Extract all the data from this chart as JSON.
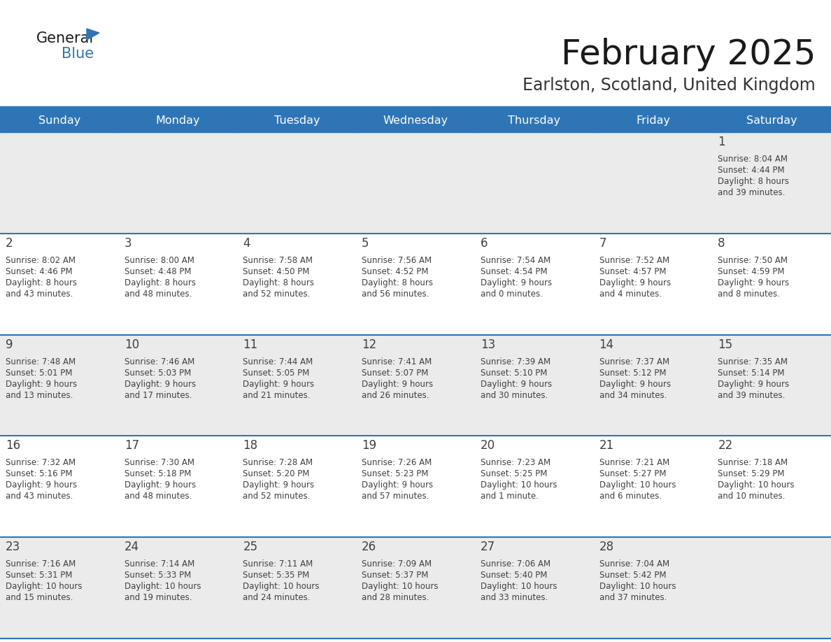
{
  "title": "February 2025",
  "subtitle": "Earlston, Scotland, United Kingdom",
  "header_bg": "#2E75B6",
  "header_text": "#FFFFFF",
  "row_bg_odd": "#EBEBEB",
  "row_bg_even": "#FFFFFF",
  "border_color": "#2E75B6",
  "day_number_color": "#404040",
  "text_color": "#404040",
  "days_of_week": [
    "Sunday",
    "Monday",
    "Tuesday",
    "Wednesday",
    "Thursday",
    "Friday",
    "Saturday"
  ],
  "weeks": [
    [
      {
        "day": null,
        "info": ""
      },
      {
        "day": null,
        "info": ""
      },
      {
        "day": null,
        "info": ""
      },
      {
        "day": null,
        "info": ""
      },
      {
        "day": null,
        "info": ""
      },
      {
        "day": null,
        "info": ""
      },
      {
        "day": 1,
        "info": "Sunrise: 8:04 AM\nSunset: 4:44 PM\nDaylight: 8 hours\nand 39 minutes."
      }
    ],
    [
      {
        "day": 2,
        "info": "Sunrise: 8:02 AM\nSunset: 4:46 PM\nDaylight: 8 hours\nand 43 minutes."
      },
      {
        "day": 3,
        "info": "Sunrise: 8:00 AM\nSunset: 4:48 PM\nDaylight: 8 hours\nand 48 minutes."
      },
      {
        "day": 4,
        "info": "Sunrise: 7:58 AM\nSunset: 4:50 PM\nDaylight: 8 hours\nand 52 minutes."
      },
      {
        "day": 5,
        "info": "Sunrise: 7:56 AM\nSunset: 4:52 PM\nDaylight: 8 hours\nand 56 minutes."
      },
      {
        "day": 6,
        "info": "Sunrise: 7:54 AM\nSunset: 4:54 PM\nDaylight: 9 hours\nand 0 minutes."
      },
      {
        "day": 7,
        "info": "Sunrise: 7:52 AM\nSunset: 4:57 PM\nDaylight: 9 hours\nand 4 minutes."
      },
      {
        "day": 8,
        "info": "Sunrise: 7:50 AM\nSunset: 4:59 PM\nDaylight: 9 hours\nand 8 minutes."
      }
    ],
    [
      {
        "day": 9,
        "info": "Sunrise: 7:48 AM\nSunset: 5:01 PM\nDaylight: 9 hours\nand 13 minutes."
      },
      {
        "day": 10,
        "info": "Sunrise: 7:46 AM\nSunset: 5:03 PM\nDaylight: 9 hours\nand 17 minutes."
      },
      {
        "day": 11,
        "info": "Sunrise: 7:44 AM\nSunset: 5:05 PM\nDaylight: 9 hours\nand 21 minutes."
      },
      {
        "day": 12,
        "info": "Sunrise: 7:41 AM\nSunset: 5:07 PM\nDaylight: 9 hours\nand 26 minutes."
      },
      {
        "day": 13,
        "info": "Sunrise: 7:39 AM\nSunset: 5:10 PM\nDaylight: 9 hours\nand 30 minutes."
      },
      {
        "day": 14,
        "info": "Sunrise: 7:37 AM\nSunset: 5:12 PM\nDaylight: 9 hours\nand 34 minutes."
      },
      {
        "day": 15,
        "info": "Sunrise: 7:35 AM\nSunset: 5:14 PM\nDaylight: 9 hours\nand 39 minutes."
      }
    ],
    [
      {
        "day": 16,
        "info": "Sunrise: 7:32 AM\nSunset: 5:16 PM\nDaylight: 9 hours\nand 43 minutes."
      },
      {
        "day": 17,
        "info": "Sunrise: 7:30 AM\nSunset: 5:18 PM\nDaylight: 9 hours\nand 48 minutes."
      },
      {
        "day": 18,
        "info": "Sunrise: 7:28 AM\nSunset: 5:20 PM\nDaylight: 9 hours\nand 52 minutes."
      },
      {
        "day": 19,
        "info": "Sunrise: 7:26 AM\nSunset: 5:23 PM\nDaylight: 9 hours\nand 57 minutes."
      },
      {
        "day": 20,
        "info": "Sunrise: 7:23 AM\nSunset: 5:25 PM\nDaylight: 10 hours\nand 1 minute."
      },
      {
        "day": 21,
        "info": "Sunrise: 7:21 AM\nSunset: 5:27 PM\nDaylight: 10 hours\nand 6 minutes."
      },
      {
        "day": 22,
        "info": "Sunrise: 7:18 AM\nSunset: 5:29 PM\nDaylight: 10 hours\nand 10 minutes."
      }
    ],
    [
      {
        "day": 23,
        "info": "Sunrise: 7:16 AM\nSunset: 5:31 PM\nDaylight: 10 hours\nand 15 minutes."
      },
      {
        "day": 24,
        "info": "Sunrise: 7:14 AM\nSunset: 5:33 PM\nDaylight: 10 hours\nand 19 minutes."
      },
      {
        "day": 25,
        "info": "Sunrise: 7:11 AM\nSunset: 5:35 PM\nDaylight: 10 hours\nand 24 minutes."
      },
      {
        "day": 26,
        "info": "Sunrise: 7:09 AM\nSunset: 5:37 PM\nDaylight: 10 hours\nand 28 minutes."
      },
      {
        "day": 27,
        "info": "Sunrise: 7:06 AM\nSunset: 5:40 PM\nDaylight: 10 hours\nand 33 minutes."
      },
      {
        "day": 28,
        "info": "Sunrise: 7:04 AM\nSunset: 5:42 PM\nDaylight: 10 hours\nand 37 minutes."
      },
      {
        "day": null,
        "info": ""
      }
    ]
  ],
  "fig_width": 11.88,
  "fig_height": 9.18,
  "dpi": 100
}
